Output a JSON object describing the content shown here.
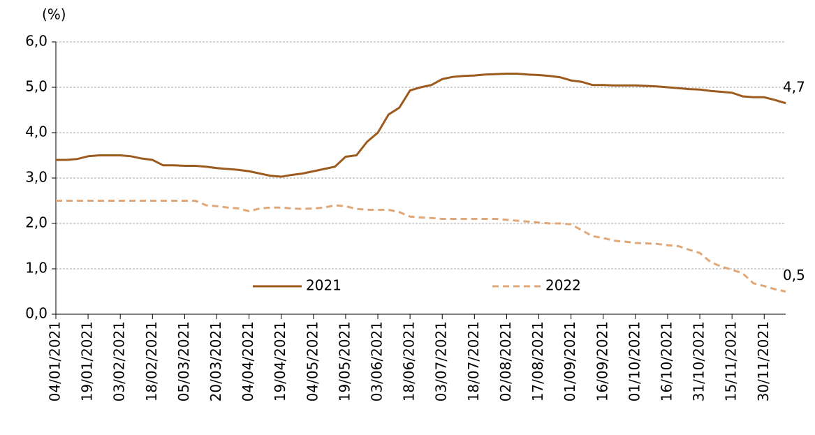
{
  "chart_data": {
    "type": "line",
    "y_label": "(%)",
    "categories": [
      "04/01/2021",
      null,
      null,
      "19/01/2021",
      null,
      null,
      "03/02/2021",
      null,
      null,
      "18/02/2021",
      null,
      null,
      "05/03/2021",
      null,
      null,
      "20/03/2021",
      null,
      null,
      "04/04/2021",
      null,
      null,
      "19/04/2021",
      null,
      null,
      "04/05/2021",
      null,
      null,
      "19/05/2021",
      null,
      null,
      "03/06/2021",
      null,
      null,
      "18/06/2021",
      null,
      null,
      "03/07/2021",
      null,
      null,
      "18/07/2021",
      null,
      null,
      "02/08/2021",
      null,
      null,
      "17/08/2021",
      null,
      null,
      "01/09/2021",
      null,
      null,
      "16/09/2021",
      null,
      null,
      "01/10/2021",
      null,
      null,
      "16/10/2021",
      null,
      null,
      "31/10/2021",
      null,
      null,
      "15/11/2021",
      null,
      null,
      "30/11/2021",
      null,
      null
    ],
    "series": [
      {
        "name": "2021",
        "color": "#9c5a1e",
        "dash": false,
        "end_label": "4,7",
        "values": [
          3.4,
          3.4,
          3.42,
          3.48,
          3.5,
          3.5,
          3.5,
          3.48,
          3.43,
          3.4,
          3.28,
          3.28,
          3.27,
          3.27,
          3.25,
          3.22,
          3.2,
          3.18,
          3.15,
          3.1,
          3.05,
          3.03,
          3.07,
          3.1,
          3.15,
          3.2,
          3.25,
          3.47,
          3.5,
          3.8,
          4.0,
          4.4,
          4.55,
          4.93,
          5.0,
          5.05,
          5.18,
          5.23,
          5.25,
          5.26,
          5.28,
          5.29,
          5.3,
          5.3,
          5.28,
          5.27,
          5.25,
          5.22,
          5.15,
          5.12,
          5.05,
          5.05,
          5.04,
          5.04,
          5.04,
          5.03,
          5.02,
          5.0,
          4.98,
          4.96,
          4.95,
          4.92,
          4.9,
          4.88,
          4.8,
          4.78,
          4.78,
          4.72,
          4.65
        ]
      },
      {
        "name": "2022",
        "color": "#e0a878",
        "dash": true,
        "end_label": "0,5",
        "values": [
          2.5,
          2.5,
          2.5,
          2.5,
          2.5,
          2.5,
          2.5,
          2.5,
          2.5,
          2.5,
          2.5,
          2.5,
          2.5,
          2.5,
          2.4,
          2.38,
          2.35,
          2.33,
          2.27,
          2.33,
          2.35,
          2.35,
          2.33,
          2.32,
          2.33,
          2.35,
          2.4,
          2.38,
          2.32,
          2.3,
          2.3,
          2.3,
          2.25,
          2.15,
          2.13,
          2.12,
          2.1,
          2.1,
          2.1,
          2.1,
          2.1,
          2.1,
          2.08,
          2.06,
          2.04,
          2.02,
          2.0,
          2.0,
          1.98,
          1.85,
          1.72,
          1.68,
          1.62,
          1.6,
          1.57,
          1.56,
          1.55,
          1.52,
          1.5,
          1.42,
          1.35,
          1.15,
          1.05,
          0.98,
          0.9,
          0.68,
          0.62,
          0.55,
          0.5
        ]
      }
    ],
    "ylim": [
      0,
      6
    ],
    "yticks": [
      {
        "value": 0,
        "label": "0,0"
      },
      {
        "value": 1,
        "label": "1,0"
      },
      {
        "value": 2,
        "label": "2,0"
      },
      {
        "value": 3,
        "label": "3,0"
      },
      {
        "value": 4,
        "label": "4,0"
      },
      {
        "value": 5,
        "label": "5,0"
      },
      {
        "value": 6,
        "label": "6,0"
      }
    ],
    "grid": true,
    "legend": "lower center"
  }
}
